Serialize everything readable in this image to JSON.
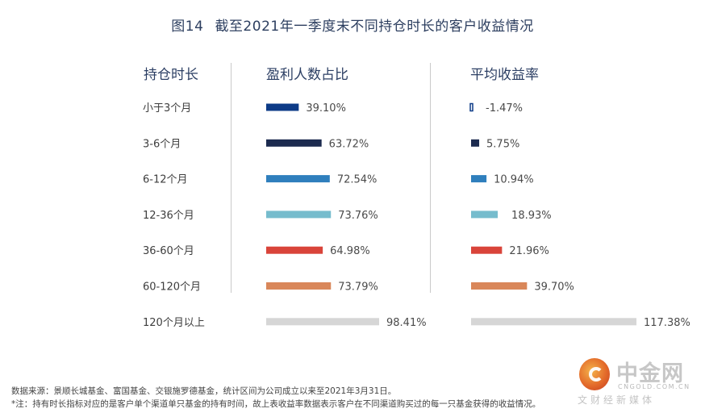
{
  "title": {
    "number": "图14",
    "text": "截至2021年一季度末不同持仓时长的客户收益情况"
  },
  "headers": {
    "duration": "持仓时长",
    "profit_ratio": "盈利人数占比",
    "avg_return": "平均收益率"
  },
  "chart_data": {
    "type": "bar",
    "categories": [
      "小于3个月",
      "3-6个月",
      "6-12个月",
      "12-36个月",
      "36-60个月",
      "60-120个月",
      "120个月以上"
    ],
    "series": [
      {
        "name": "盈利人数占比",
        "values": [
          39.1,
          63.72,
          72.54,
          73.76,
          64.98,
          73.79,
          98.41
        ],
        "labels": [
          "39.10%",
          "63.72%",
          "72.54%",
          "73.76%",
          "64.98%",
          "73.79%",
          "98.41%"
        ]
      },
      {
        "name": "平均收益率",
        "values": [
          -1.47,
          5.75,
          10.94,
          18.93,
          21.96,
          39.7,
          117.38
        ],
        "labels": [
          "-1.47%",
          "5.75%",
          "10.94%",
          "18.93%",
          "21.96%",
          "39.70%",
          "117.38%"
        ]
      }
    ],
    "colors": [
      "#0d3b87",
      "#1c2b4f",
      "#2f7fbd",
      "#76bccd",
      "#d9443a",
      "#d9875a",
      "#d6d6d6"
    ]
  },
  "footer": {
    "source": "数据来源：景顺长城基金、富国基金、交银施罗德基金，统计区间为公司成立以来至2021年3月31日。",
    "note": "*注：持有时长指标对应的是客户单个渠道单只基金的持有时间，故上表收益率数据表示客户在不同渠道购买过的每一只基金获得的收益情况。"
  },
  "watermark": {
    "name": "中金网",
    "url": "CNGOLD.COM.CN",
    "slogan": "文财经新媒体"
  }
}
